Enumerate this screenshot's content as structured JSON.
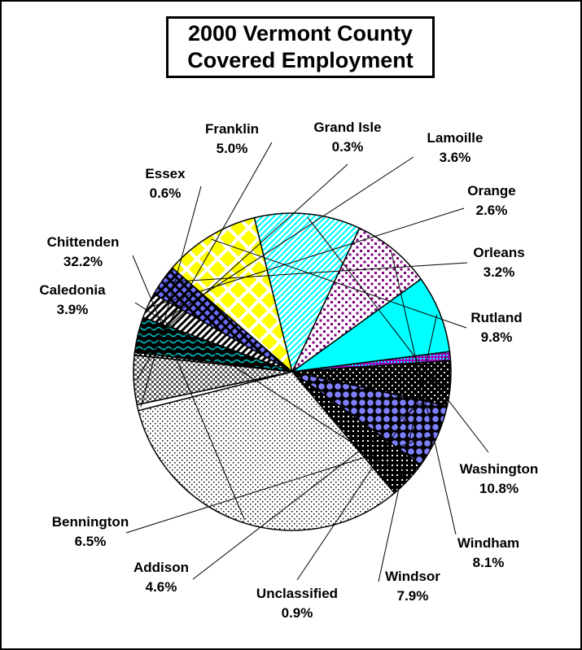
{
  "chart_data": {
    "type": "pie",
    "title_lines": [
      "2000 Vermont County",
      "Covered Employment"
    ],
    "slices": [
      {
        "name": "Grand Isle",
        "value": 0.3,
        "label": "0.3%",
        "fill": "vcheck"
      },
      {
        "name": "Lamoille",
        "value": 3.6,
        "label": "3.6%",
        "fill": "wave"
      },
      {
        "name": "Orange",
        "value": 2.6,
        "label": "2.6%",
        "fill": "diag"
      },
      {
        "name": "Orleans",
        "value": 3.2,
        "label": "3.2%",
        "fill": "bluecheck"
      },
      {
        "name": "Rutland",
        "value": 9.8,
        "label": "9.8%",
        "fill": "yellowdiamond"
      },
      {
        "name": "Washington",
        "value": 10.8,
        "label": "10.8%",
        "fill": "cyanhatch"
      },
      {
        "name": "Windham",
        "value": 8.1,
        "label": "8.1%",
        "fill": "purpledots"
      },
      {
        "name": "Windsor",
        "value": 7.9,
        "label": "7.9%",
        "fill": "cyan"
      },
      {
        "name": "Unclassified",
        "value": 0.9,
        "label": "0.9%",
        "fill": "purpleline"
      },
      {
        "name": "Addison",
        "value": 4.6,
        "label": "4.6%",
        "fill": "blackdots"
      },
      {
        "name": "Bennington",
        "value": 6.5,
        "label": "6.5%",
        "fill": "bluecircles"
      },
      {
        "name": "Caledonia",
        "value": 3.9,
        "label": "3.9%",
        "fill": "darkcheck"
      },
      {
        "name": "Chittenden",
        "value": 32.2,
        "label": "32.2%",
        "fill": "lightdots"
      },
      {
        "name": "Essex",
        "value": 0.6,
        "label": "0.6%",
        "fill": "white"
      },
      {
        "name": "Franklin",
        "value": 5.0,
        "label": "5.0%",
        "fill": "graycheck"
      }
    ],
    "colors": {
      "cyan": "#00ffff",
      "yellow": "#ffff00",
      "blue": "#6b6bff",
      "purple": "#800080",
      "teal": "#008080",
      "black": "#000000",
      "white": "#ffffff"
    }
  }
}
